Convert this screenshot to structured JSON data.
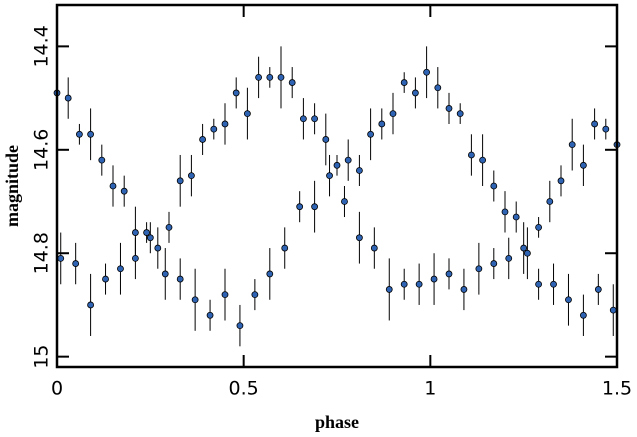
{
  "chart_data": {
    "type": "scatter",
    "x_label": "phase",
    "y_label": "magnitude",
    "xlim": [
      0,
      1.5
    ],
    "xticks": [
      0,
      0.5,
      1,
      1.5
    ],
    "ylim": [
      15.02,
      14.32
    ],
    "yticks": [
      14.4,
      14.6,
      14.8,
      15
    ],
    "color": "#2f64b4",
    "x": [
      0.0,
      0.03,
      0.06,
      0.09,
      0.12,
      0.15,
      0.18,
      0.21,
      0.24,
      0.27,
      0.3,
      0.33,
      0.36,
      0.39,
      0.42,
      0.45,
      0.48,
      0.51,
      0.54,
      0.57,
      0.6,
      0.63,
      0.66,
      0.69,
      0.72,
      0.75,
      0.78,
      0.81,
      0.84,
      0.87,
      0.9,
      0.93,
      0.96,
      0.99,
      1.02,
      1.05,
      1.08,
      1.11,
      1.14,
      1.17,
      1.2,
      1.23,
      1.26,
      1.29,
      1.32,
      1.35,
      1.38,
      1.41,
      1.44,
      1.47,
      1.5,
      0.01,
      0.05,
      0.09,
      0.13,
      0.17,
      0.21,
      0.25,
      0.29,
      0.33,
      0.37,
      0.41,
      0.45,
      0.49,
      0.53,
      0.57,
      0.61,
      0.65,
      0.69,
      0.73,
      0.77,
      0.81,
      0.85,
      0.89,
      0.93,
      0.97,
      1.01,
      1.05,
      1.09,
      1.13,
      1.17,
      1.21,
      1.25,
      1.29,
      1.33,
      1.37,
      1.41,
      1.45,
      1.49
    ],
    "values": [
      14.49,
      14.5,
      14.57,
      14.57,
      14.62,
      14.67,
      14.68,
      14.76,
      14.76,
      14.79,
      14.75,
      14.66,
      14.65,
      14.58,
      14.56,
      14.55,
      14.49,
      14.53,
      14.46,
      14.46,
      14.46,
      14.47,
      14.54,
      14.54,
      14.58,
      14.63,
      14.62,
      14.64,
      14.57,
      14.55,
      14.53,
      14.47,
      14.49,
      14.45,
      14.48,
      14.52,
      14.53,
      14.61,
      14.62,
      14.67,
      14.72,
      14.73,
      14.8,
      14.75,
      14.7,
      14.66,
      14.59,
      14.63,
      14.55,
      14.56,
      14.59,
      14.81,
      14.82,
      14.9,
      14.85,
      14.83,
      14.81,
      14.77,
      14.84,
      14.85,
      14.89,
      14.92,
      14.88,
      14.94,
      14.88,
      14.84,
      14.79,
      14.71,
      14.71,
      14.65,
      14.7,
      14.77,
      14.79,
      14.87,
      14.86,
      14.86,
      14.85,
      14.84,
      14.87,
      14.83,
      14.82,
      14.81,
      14.79,
      14.86,
      14.86,
      14.89,
      14.92,
      14.87,
      14.91
    ],
    "errors": [
      0.03,
      0.04,
      0.02,
      0.05,
      0.03,
      0.04,
      0.03,
      0.05,
      0.02,
      0.04,
      0.03,
      0.05,
      0.04,
      0.03,
      0.02,
      0.04,
      0.03,
      0.05,
      0.04,
      0.02,
      0.06,
      0.03,
      0.04,
      0.03,
      0.05,
      0.02,
      0.04,
      0.03,
      0.05,
      0.03,
      0.04,
      0.02,
      0.03,
      0.05,
      0.04,
      0.03,
      0.02,
      0.04,
      0.05,
      0.03,
      0.04,
      0.03,
      0.05,
      0.02,
      0.04,
      0.03,
      0.05,
      0.04,
      0.03,
      0.02,
      0.04,
      0.05,
      0.04,
      0.06,
      0.03,
      0.05,
      0.04,
      0.03,
      0.05,
      0.04,
      0.06,
      0.03,
      0.05,
      0.04,
      0.03,
      0.05,
      0.04,
      0.03,
      0.05,
      0.04,
      0.03,
      0.05,
      0.04,
      0.06,
      0.03,
      0.04,
      0.05,
      0.03,
      0.04,
      0.05,
      0.03,
      0.04,
      0.05,
      0.03,
      0.04,
      0.05,
      0.04,
      0.03,
      0.05
    ]
  }
}
